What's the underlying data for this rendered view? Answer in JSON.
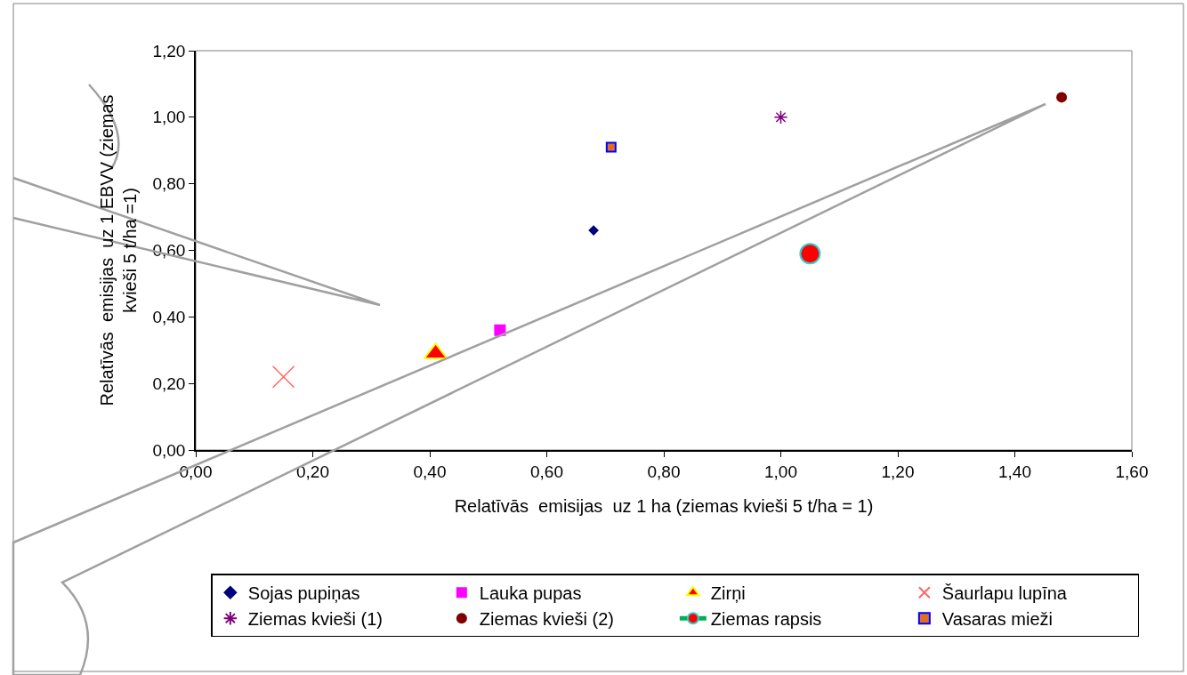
{
  "chart_data": {
    "type": "scatter",
    "xlabel": "Relatīvās  emisijas  uz 1 ha (ziemas kvieši 5 t/ha = 1)",
    "ylabel": "Relatīvās  emisijas  uz 1 EBVV (ziemas\nkvieši 5 t/ha =1)",
    "xlim": [
      0,
      1.6
    ],
    "ylim": [
      0,
      1.2
    ],
    "xticks": [
      {
        "value": 0,
        "label": "0,00"
      },
      {
        "value": 0.2,
        "label": "0,20"
      },
      {
        "value": 0.4,
        "label": "0,40"
      },
      {
        "value": 0.6,
        "label": "0,60"
      },
      {
        "value": 0.8,
        "label": "0,80"
      },
      {
        "value": 1.0,
        "label": "1,00"
      },
      {
        "value": 1.2,
        "label": "1,20"
      },
      {
        "value": 1.4,
        "label": "1,40"
      },
      {
        "value": 1.6,
        "label": "1,60"
      }
    ],
    "yticks": [
      {
        "value": 0,
        "label": "0,00"
      },
      {
        "value": 0.2,
        "label": "0,20"
      },
      {
        "value": 0.4,
        "label": "0,40"
      },
      {
        "value": 0.6,
        "label": "0,60"
      },
      {
        "value": 0.8,
        "label": "0,80"
      },
      {
        "value": 1.0,
        "label": "1,00"
      },
      {
        "value": 1.2,
        "label": "1,20"
      }
    ],
    "grid": false,
    "legend": "bottom",
    "series": [
      {
        "name": "Sojas pupiņas",
        "color": "#000080",
        "marker": "diamond",
        "x": [
          0.68
        ],
        "values": [
          0.66
        ]
      },
      {
        "name": "Lauka pupas",
        "color": "#ff00ff",
        "marker": "square",
        "x": [
          0.52
        ],
        "values": [
          0.36
        ]
      },
      {
        "name": "Zirņi",
        "color": "#ff0000",
        "marker": "triangle",
        "x": [
          0.41
        ],
        "values": [
          0.29
        ]
      },
      {
        "name": "Šaurlapu lupīna",
        "color": "#ff6666",
        "marker": "cross",
        "x": [
          0.15
        ],
        "values": [
          0.22
        ]
      },
      {
        "name": "Ziemas kvieši (1)",
        "color": "#800080",
        "marker": "cross",
        "x": [
          1.0
        ],
        "values": [
          1.0
        ]
      },
      {
        "name": "Ziemas kvieši (2)",
        "color": "#800000",
        "marker": "circle",
        "x": [
          1.48
        ],
        "values": [
          1.06
        ]
      },
      {
        "name": "Ziemas rapsis",
        "color": "#ff0000",
        "marker": "circle",
        "x": [
          1.05
        ],
        "values": [
          0.59
        ]
      },
      {
        "name": "Vasaras mieži",
        "color": "#e07020",
        "marker": "square",
        "x": [
          0.71
        ],
        "values": [
          0.91
        ]
      }
    ]
  }
}
